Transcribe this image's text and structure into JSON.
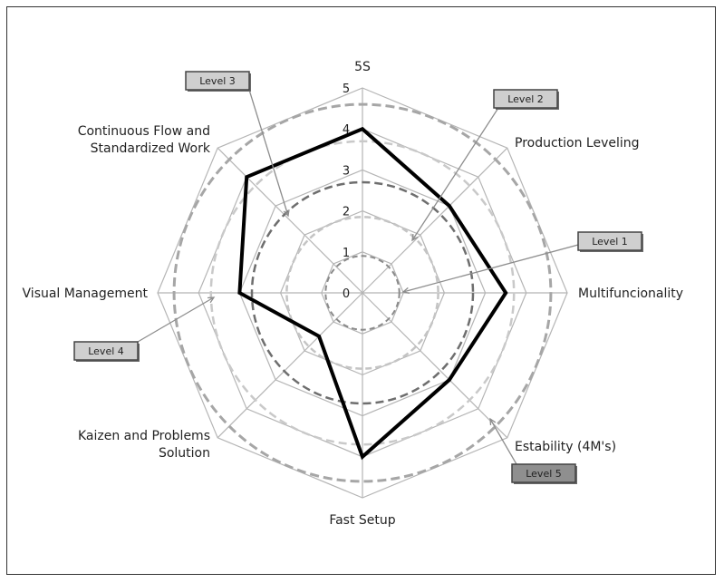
{
  "chart_data": {
    "type": "radar",
    "title": "",
    "axes": [
      {
        "label": "5S",
        "value": 4
      },
      {
        "label": "Production Leveling",
        "value": 3
      },
      {
        "label": "Multifuncionality",
        "value": 3.5
      },
      {
        "label": "Estability (4M's)",
        "value": 3
      },
      {
        "label": "Fast Setup",
        "value": 4
      },
      {
        "label": "Kaizen and Problems Solution",
        "value": 1.5
      },
      {
        "label": "Visual Management",
        "value": 3
      },
      {
        "label": "Continuous Flow and Standardized Work",
        "value": 4
      }
    ],
    "range": [
      0,
      5
    ],
    "ticks": [
      "0",
      "1",
      "2",
      "3",
      "4",
      "5"
    ],
    "level_rings": [
      1,
      2,
      3,
      4,
      5
    ],
    "callouts": [
      {
        "label": "Level 1",
        "level": 1,
        "axis": 2
      },
      {
        "label": "Level 2",
        "level": 2,
        "axis": 1
      },
      {
        "label": "Level 3",
        "level": 3,
        "axis": 7
      },
      {
        "label": "Level 4",
        "level": 4,
        "axis": 6
      },
      {
        "label": "Level 5",
        "level": 5,
        "axis": 3
      }
    ],
    "colors": {
      "grid": "#b5b5b5",
      "series": "#000000",
      "level1": "#8a8a8a",
      "level2": "#c4c4c4",
      "level3": "#6e6e6e",
      "level4": "#c9c9c9",
      "level5": "#a6a6a6",
      "callout_fill_light": "#cfcfcf",
      "callout_fill_dark": "#8f8f8f"
    }
  }
}
